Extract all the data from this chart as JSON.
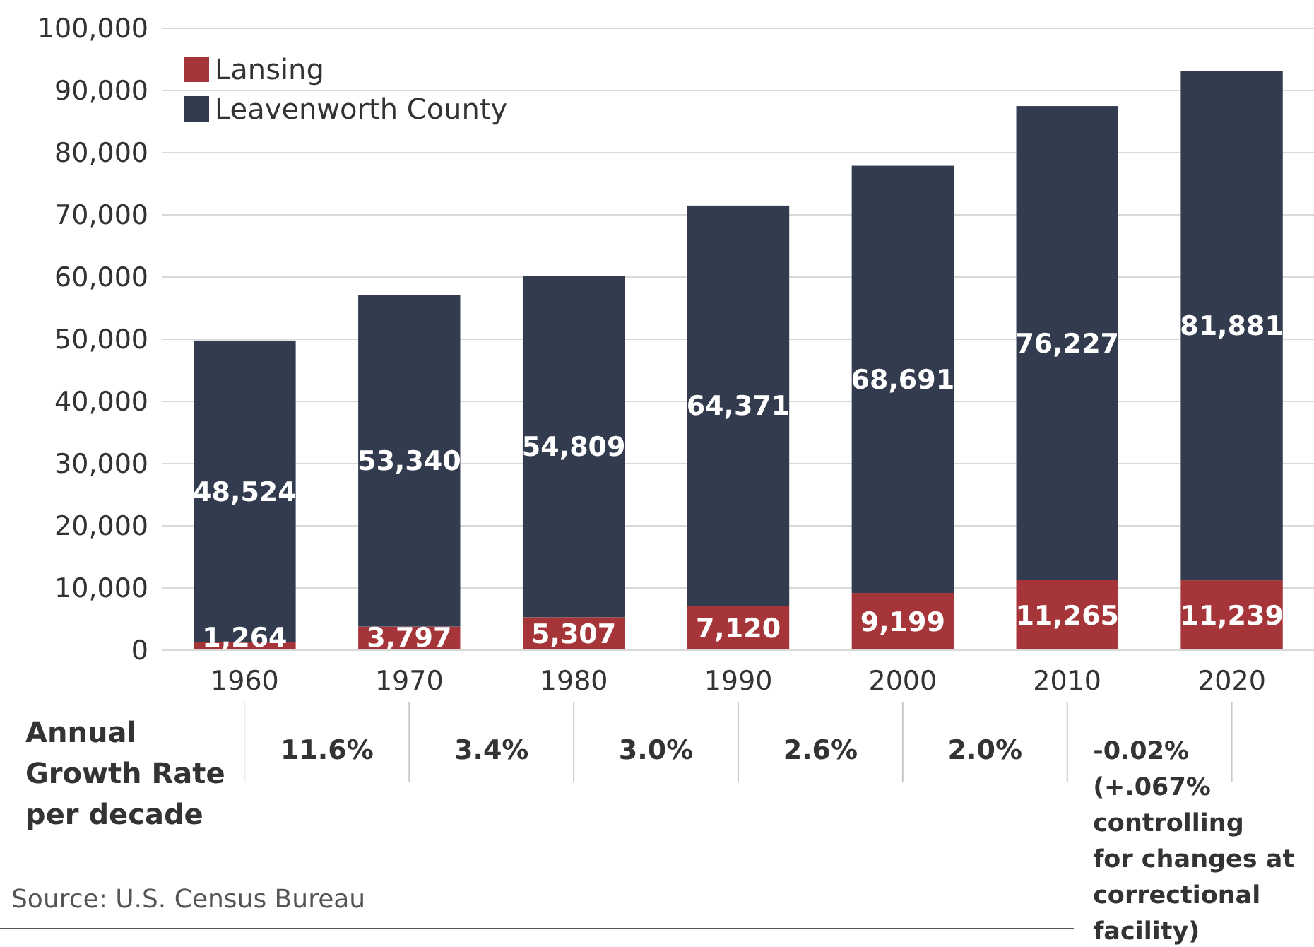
{
  "chart_data": {
    "type": "bar",
    "stacked": true,
    "categories": [
      "1960",
      "1970",
      "1980",
      "1990",
      "2000",
      "2010",
      "2020"
    ],
    "series": [
      {
        "name": "Lansing",
        "color": "#a63539",
        "values": [
          1264,
          3797,
          5307,
          7120,
          9199,
          11265,
          11239
        ],
        "value_labels": [
          "1,264",
          "3,797",
          "5,307",
          "7,120",
          "9,199",
          "11,265",
          "11,239"
        ]
      },
      {
        "name": "Leavenworth County",
        "color": "#323c4e",
        "values": [
          48524,
          53340,
          54809,
          64371,
          68691,
          76227,
          81881
        ],
        "value_labels": [
          "48,524",
          "53,340",
          "54,809",
          "64,371",
          "68,691",
          "76,227",
          "81,881"
        ]
      }
    ],
    "ylim": [
      0,
      100000
    ],
    "yticks": [
      {
        "value": 0,
        "label": "0"
      },
      {
        "value": 10000,
        "label": "10,000"
      },
      {
        "value": 20000,
        "label": "20,000"
      },
      {
        "value": 30000,
        "label": "30,000"
      },
      {
        "value": 40000,
        "label": "40,000"
      },
      {
        "value": 50000,
        "label": "50,000"
      },
      {
        "value": 60000,
        "label": "60,000"
      },
      {
        "value": 70000,
        "label": "70,000"
      },
      {
        "value": 80000,
        "label": "80,000"
      },
      {
        "value": 90000,
        "label": "90,000"
      },
      {
        "value": 100000,
        "label": "100,000"
      }
    ],
    "grid": "y",
    "legend": "top left",
    "annotations": [
      "Annual\nGrowth Rate\nper decade",
      "11.6%",
      "3.4%",
      "3.0%",
      "2.6%",
      "2.0%",
      "-0.02%\n(+.067%\ncontrolling\nfor changes at\ncorrectional\nfacility)",
      "Source: U.S. Census Bureau"
    ]
  }
}
